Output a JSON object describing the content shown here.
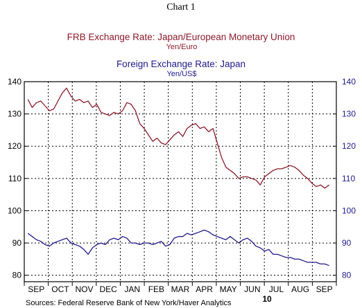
{
  "chart_data": {
    "type": "line",
    "title": "Chart 1",
    "series": [
      {
        "name": "FRB Exchange Rate: Japan/European Monetary Union",
        "unit": "Yen/Euro",
        "color": "#8b1a2b",
        "axis": "left",
        "values": [
          134.5,
          132.0,
          133.5,
          134.0,
          132.5,
          131.0,
          131.5,
          134.0,
          136.5,
          138.0,
          135.5,
          134.0,
          134.5,
          133.5,
          134.0,
          132.0,
          133.0,
          130.5,
          130.0,
          129.5,
          130.5,
          130.0,
          131.0,
          133.5,
          133.0,
          131.0,
          127.0,
          125.5,
          123.5,
          121.5,
          122.5,
          121.0,
          120.5,
          122.0,
          123.5,
          124.5,
          123.0,
          125.5,
          126.5,
          127.0,
          125.5,
          126.0,
          124.5,
          125.5,
          121.0,
          116.5,
          113.5,
          112.5,
          111.5,
          110.0,
          110.5,
          110.5,
          110.0,
          109.5,
          108.0,
          110.5,
          111.5,
          112.5,
          113.0,
          113.0,
          113.5,
          114.0,
          113.5,
          112.5,
          111.0,
          110.0,
          108.5,
          107.5,
          108.0,
          107.0,
          108.0
        ]
      },
      {
        "name": "Foreign Exchange Rate: Japan",
        "unit": "Yen/US$",
        "color": "#1e1a8c",
        "axis": "right",
        "values": [
          93.0,
          92.0,
          91.0,
          90.5,
          89.5,
          89.0,
          90.0,
          90.5,
          91.0,
          91.5,
          90.0,
          89.5,
          89.0,
          88.0,
          86.5,
          88.5,
          89.5,
          90.0,
          89.5,
          91.0,
          91.5,
          91.0,
          92.0,
          91.5,
          90.0,
          90.0,
          89.5,
          90.0,
          90.0,
          89.5,
          90.0,
          90.5,
          89.0,
          89.5,
          91.5,
          92.0,
          92.0,
          93.0,
          92.5,
          93.0,
          93.5,
          94.0,
          93.5,
          92.5,
          92.0,
          91.5,
          91.0,
          92.0,
          91.0,
          90.0,
          91.0,
          91.5,
          90.5,
          89.0,
          88.5,
          87.5,
          88.0,
          86.5,
          86.5,
          86.0,
          85.5,
          85.5,
          85.0,
          85.0,
          84.5,
          84.0,
          84.0,
          84.0,
          83.5,
          83.5,
          83.0
        ]
      }
    ],
    "x": {
      "range": [
        0,
        13
      ],
      "tick_labels": [
        "SEP",
        "OCT",
        "NOV",
        "DEC",
        "JAN",
        "FEB",
        "MAR",
        "APR",
        "MAY",
        "JUN",
        "JUL",
        "AUG",
        "SEP"
      ],
      "year_label": "10"
    },
    "y_left": {
      "range": [
        78,
        140
      ],
      "ticks": [
        80,
        90,
        100,
        110,
        120,
        130,
        140
      ]
    },
    "y_right": {
      "range": [
        78,
        140
      ],
      "ticks": [
        80,
        90,
        100,
        110,
        120,
        130,
        140
      ],
      "color": "#1e1a8c"
    },
    "grid": "dashed vertical and horizontal",
    "source": "Sources:  Federal Reserve Bank of New York/Haver Analytics"
  }
}
